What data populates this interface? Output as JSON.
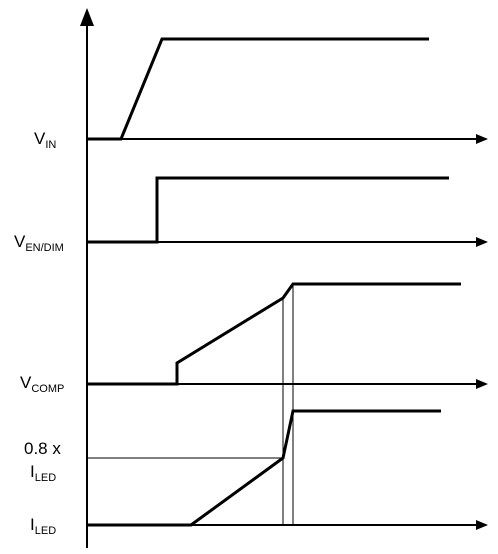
{
  "labels": {
    "vin": {
      "main": "V",
      "sub": "IN"
    },
    "ven": {
      "main": "V",
      "sub": "EN/DIM"
    },
    "vcomp": {
      "main": "V",
      "sub": "COMP"
    },
    "threshold": {
      "line1": "0.8 x",
      "main": "I",
      "sub": "LED"
    },
    "iled": {
      "main": "I",
      "sub": "LED"
    }
  },
  "colors": {
    "line": "#000000",
    "background": "#ffffff"
  }
}
